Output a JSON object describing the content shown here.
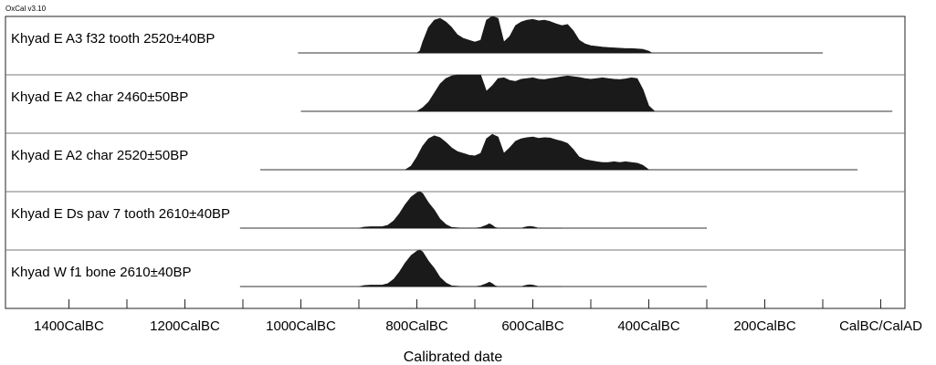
{
  "app": {
    "version_label": "OxCal v3.10"
  },
  "chart_data": {
    "type": "area",
    "title": "",
    "xlabel": "Calibrated date",
    "ylabel": "",
    "xlim": [
      -1550,
      100
    ],
    "grid": "horizontal row separators",
    "x_ticks": [
      {
        "value": -1400,
        "label": "1400CalBC"
      },
      {
        "value": -1200,
        "label": "1200CalBC"
      },
      {
        "value": -1000,
        "label": "1000CalBC"
      },
      {
        "value": -800,
        "label": "800CalBC"
      },
      {
        "value": -600,
        "label": "600CalBC"
      },
      {
        "value": -400,
        "label": "400CalBC"
      },
      {
        "value": -200,
        "label": "200CalBC"
      },
      {
        "value": 0,
        "label": "CalBC/CalAD"
      }
    ],
    "series": [
      {
        "name": "Khyad E A3 f32 tooth  2520±40BP",
        "baseline": [
          -1005,
          -100
        ],
        "x": [
          -800,
          -795,
          -790,
          -780,
          -770,
          -760,
          -750,
          -740,
          -730,
          -720,
          -710,
          -700,
          -690,
          -680,
          -670,
          -660,
          -650,
          -640,
          -630,
          -620,
          -610,
          -600,
          -590,
          -580,
          -570,
          -560,
          -550,
          -540,
          -530,
          -520,
          -510,
          -500,
          -490,
          -480,
          -470,
          -460,
          -450,
          -440,
          -430,
          -420,
          -410,
          -400,
          -395
        ],
        "values": [
          0,
          0.05,
          0.3,
          0.7,
          0.9,
          0.95,
          0.85,
          0.7,
          0.5,
          0.4,
          0.35,
          0.3,
          0.35,
          0.9,
          1.0,
          0.95,
          0.3,
          0.45,
          0.75,
          0.85,
          0.9,
          0.92,
          0.88,
          0.9,
          0.86,
          0.8,
          0.75,
          0.78,
          0.6,
          0.35,
          0.25,
          0.2,
          0.18,
          0.16,
          0.15,
          0.14,
          0.13,
          0.12,
          0.12,
          0.11,
          0.1,
          0.05,
          0
        ]
      },
      {
        "name": "Khyad E A2 char  2460±50BP",
        "baseline": [
          -1000,
          20
        ],
        "x": [
          -800,
          -790,
          -780,
          -770,
          -760,
          -750,
          -740,
          -730,
          -720,
          -710,
          -700,
          -690,
          -680,
          -670,
          -660,
          -650,
          -640,
          -630,
          -620,
          -610,
          -600,
          -590,
          -580,
          -570,
          -560,
          -550,
          -540,
          -530,
          -520,
          -510,
          -500,
          -490,
          -480,
          -470,
          -460,
          -450,
          -440,
          -430,
          -420,
          -410,
          -400,
          -390
        ],
        "values": [
          0,
          0.1,
          0.25,
          0.5,
          0.75,
          0.9,
          0.97,
          1.0,
          1.0,
          1.0,
          1.0,
          1.0,
          0.55,
          0.7,
          0.9,
          0.92,
          0.85,
          0.82,
          0.88,
          0.9,
          0.92,
          0.88,
          0.87,
          0.9,
          0.92,
          0.95,
          0.97,
          0.95,
          0.93,
          0.9,
          0.88,
          0.9,
          0.92,
          0.9,
          0.88,
          0.87,
          0.89,
          0.92,
          0.9,
          0.6,
          0.15,
          0
        ]
      },
      {
        "name": "Khyad E A2 char  2520±50BP",
        "baseline": [
          -1070,
          -40
        ],
        "x": [
          -820,
          -810,
          -800,
          -790,
          -780,
          -770,
          -760,
          -750,
          -740,
          -730,
          -720,
          -710,
          -700,
          -690,
          -680,
          -670,
          -660,
          -650,
          -640,
          -630,
          -620,
          -610,
          -600,
          -590,
          -580,
          -570,
          -560,
          -550,
          -540,
          -530,
          -520,
          -510,
          -500,
          -490,
          -480,
          -470,
          -460,
          -450,
          -440,
          -430,
          -420,
          -410,
          -400
        ],
        "values": [
          0,
          0.1,
          0.35,
          0.65,
          0.85,
          0.93,
          0.88,
          0.75,
          0.6,
          0.5,
          0.45,
          0.4,
          0.38,
          0.45,
          0.85,
          0.97,
          0.9,
          0.45,
          0.6,
          0.78,
          0.85,
          0.88,
          0.9,
          0.86,
          0.88,
          0.87,
          0.82,
          0.78,
          0.72,
          0.55,
          0.35,
          0.28,
          0.25,
          0.22,
          0.2,
          0.2,
          0.22,
          0.2,
          0.22,
          0.2,
          0.18,
          0.12,
          0
        ]
      },
      {
        "name": "Khyad E Ds pav 7 tooth  2610±40BP",
        "baseline": [
          -1105,
          -300
        ],
        "x": [
          -900,
          -890,
          -880,
          -860,
          -850,
          -840,
          -830,
          -820,
          -810,
          -800,
          -795,
          -790,
          -780,
          -770,
          -760,
          -750,
          -740,
          -720,
          -700,
          -690,
          -680,
          -675,
          -670,
          -665,
          -660,
          -650,
          -620,
          -615,
          -610,
          -605,
          -600,
          -595,
          -590,
          -550
        ],
        "values": [
          0,
          0.03,
          0.04,
          0.04,
          0.08,
          0.2,
          0.4,
          0.65,
          0.85,
          0.97,
          1.0,
          0.95,
          0.7,
          0.5,
          0.25,
          0.1,
          0.02,
          0,
          0,
          0.02,
          0.08,
          0.12,
          0.08,
          0.02,
          0,
          0,
          0,
          0.02,
          0.04,
          0.05,
          0.04,
          0.02,
          0,
          0
        ]
      },
      {
        "name": "Khyad W f1 bone  2610±40BP",
        "baseline": [
          -1105,
          -300
        ],
        "x": [
          -900,
          -890,
          -880,
          -860,
          -850,
          -840,
          -830,
          -820,
          -810,
          -800,
          -795,
          -790,
          -780,
          -770,
          -760,
          -750,
          -740,
          -720,
          -700,
          -690,
          -680,
          -675,
          -670,
          -665,
          -660,
          -650,
          -620,
          -615,
          -610,
          -605,
          -600,
          -595,
          -590,
          -550
        ],
        "values": [
          0,
          0.03,
          0.04,
          0.04,
          0.08,
          0.2,
          0.4,
          0.65,
          0.85,
          0.97,
          1.0,
          0.95,
          0.7,
          0.5,
          0.25,
          0.1,
          0.02,
          0,
          0,
          0.02,
          0.08,
          0.12,
          0.08,
          0.02,
          0,
          0,
          0,
          0.02,
          0.04,
          0.05,
          0.04,
          0.02,
          0,
          0
        ]
      }
    ]
  }
}
